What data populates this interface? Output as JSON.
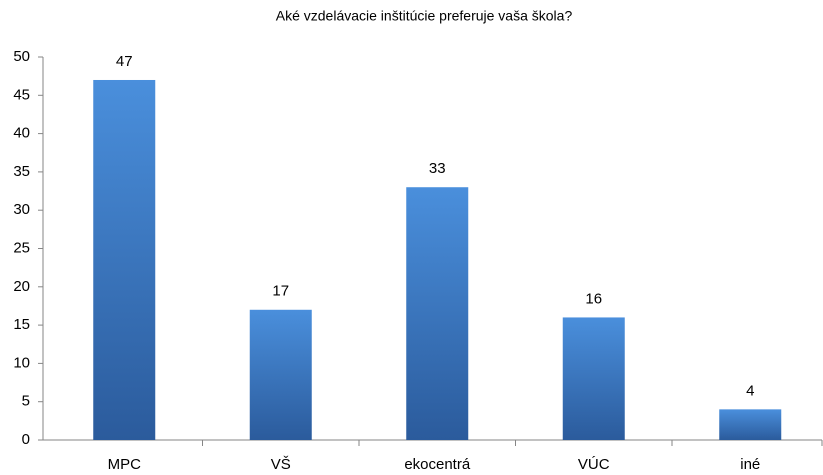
{
  "chart_data": {
    "type": "bar",
    "title": "Aké vzdelávacie inštitúcie preferuje vaša škola?",
    "categories": [
      "MPC",
      "VŠ",
      "ekocentrá",
      "VÚC",
      "iné"
    ],
    "values": [
      47,
      17,
      33,
      16,
      4
    ],
    "color": "#4a8fdc",
    "ylim": [
      0,
      50
    ],
    "yticks": [
      0,
      5,
      10,
      15,
      20,
      25,
      30,
      35,
      40,
      45,
      50
    ],
    "grid": false
  }
}
